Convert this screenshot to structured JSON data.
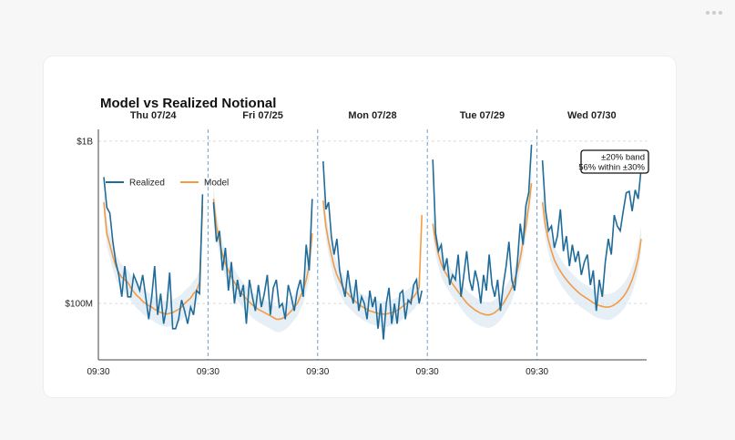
{
  "chart_data": {
    "type": "line",
    "title": "Model vs Realized Notional",
    "y_scale": "log",
    "ylim": [
      45000000,
      1150000000
    ],
    "y_ticks": [
      {
        "value": 1000000000,
        "label": "$1B"
      },
      {
        "value": 100000000,
        "label": "$100M"
      }
    ],
    "x_tick_label": "09:30",
    "days": [
      {
        "label": "Thu 07/24",
        "realized": [
          600000000,
          390000000,
          360000000,
          240000000,
          180000000,
          150000000,
          110000000,
          170000000,
          110000000,
          110000000,
          150000000,
          135000000,
          120000000,
          150000000,
          110000000,
          80000000,
          110000000,
          170000000,
          85000000,
          115000000,
          75000000,
          95000000,
          155000000,
          70000000,
          70000000,
          80000000,
          105000000,
          90000000,
          75000000,
          95000000,
          85000000,
          120000000,
          115000000,
          470000000
        ],
        "model": [
          420000000,
          270000000,
          230000000,
          195000000,
          170000000,
          155000000,
          145000000,
          140000000,
          135000000,
          125000000,
          118000000,
          112000000,
          108000000,
          103000000,
          100000000,
          97000000,
          95000000,
          92000000,
          90000000,
          88000000,
          87000000,
          86000000,
          87000000,
          88000000,
          90000000,
          92000000,
          95000000,
          100000000,
          104000000,
          108000000,
          115000000,
          120000000,
          135000000,
          400000000
        ]
      },
      {
        "label": "Fri 07/25",
        "realized": [
          420000000,
          240000000,
          280000000,
          160000000,
          220000000,
          120000000,
          180000000,
          100000000,
          140000000,
          110000000,
          130000000,
          75000000,
          140000000,
          110000000,
          90000000,
          130000000,
          95000000,
          115000000,
          150000000,
          85000000,
          125000000,
          140000000,
          95000000,
          100000000,
          80000000,
          130000000,
          110000000,
          90000000,
          120000000,
          140000000,
          110000000,
          230000000,
          160000000,
          440000000
        ],
        "model": [
          440000000,
          300000000,
          240000000,
          200000000,
          175000000,
          160000000,
          145000000,
          135000000,
          125000000,
          118000000,
          112000000,
          107000000,
          102000000,
          98000000,
          95000000,
          92000000,
          90000000,
          88000000,
          86000000,
          84000000,
          82000000,
          80000000,
          80000000,
          81000000,
          83000000,
          86000000,
          90000000,
          95000000,
          100000000,
          110000000,
          120000000,
          140000000,
          170000000,
          270000000
        ]
      },
      {
        "label": "Mon 07/28",
        "realized": [
          750000000,
          380000000,
          420000000,
          260000000,
          200000000,
          250000000,
          160000000,
          130000000,
          110000000,
          160000000,
          120000000,
          100000000,
          140000000,
          90000000,
          110000000,
          100000000,
          80000000,
          120000000,
          95000000,
          110000000,
          70000000,
          100000000,
          60000000,
          100000000,
          125000000,
          75000000,
          100000000,
          75000000,
          115000000,
          120000000,
          80000000,
          105000000,
          100000000,
          130000000,
          140000000,
          100000000,
          120000000
        ],
        "model": [
          430000000,
          300000000,
          240000000,
          200000000,
          170000000,
          150000000,
          138000000,
          128000000,
          120000000,
          115000000,
          110000000,
          106000000,
          102000000,
          99000000,
          96000000,
          94000000,
          92000000,
          90000000,
          89000000,
          88000000,
          87000000,
          86000000,
          86000000,
          86000000,
          87000000,
          88000000,
          89000000,
          91000000,
          93000000,
          96000000,
          99000000,
          102000000,
          106000000,
          110000000,
          116000000,
          125000000,
          350000000
        ]
      },
      {
        "label": "Tue 07/29",
        "realized": [
          770000000,
          270000000,
          210000000,
          230000000,
          160000000,
          190000000,
          130000000,
          150000000,
          140000000,
          200000000,
          110000000,
          150000000,
          210000000,
          140000000,
          120000000,
          160000000,
          135000000,
          100000000,
          150000000,
          120000000,
          200000000,
          130000000,
          110000000,
          140000000,
          90000000,
          130000000,
          170000000,
          240000000,
          140000000,
          120000000,
          180000000,
          310000000,
          230000000,
          400000000,
          480000000,
          950000000
        ],
        "model": [
          310000000,
          240000000,
          200000000,
          175000000,
          160000000,
          150000000,
          140000000,
          132000000,
          125000000,
          118000000,
          112000000,
          106000000,
          101000000,
          97000000,
          94000000,
          91000000,
          89000000,
          87000000,
          86000000,
          85000000,
          85000000,
          86000000,
          88000000,
          91000000,
          95000000,
          100000000,
          107000000,
          115000000,
          125000000,
          140000000,
          160000000,
          190000000,
          240000000,
          300000000,
          400000000,
          550000000
        ]
      },
      {
        "label": "Wed 07/30",
        "realized": [
          760000000,
          380000000,
          280000000,
          300000000,
          220000000,
          260000000,
          380000000,
          210000000,
          260000000,
          170000000,
          230000000,
          180000000,
          210000000,
          150000000,
          180000000,
          200000000,
          130000000,
          160000000,
          90000000,
          140000000,
          110000000,
          180000000,
          250000000,
          200000000,
          350000000,
          300000000,
          280000000,
          370000000,
          480000000,
          490000000,
          370000000,
          500000000,
          440000000,
          680000000
        ],
        "model": [
          420000000,
          300000000,
          245000000,
          210000000,
          185000000,
          170000000,
          158000000,
          148000000,
          140000000,
          133000000,
          127000000,
          122000000,
          117000000,
          113000000,
          110000000,
          107000000,
          104000000,
          101000000,
          99000000,
          97000000,
          96000000,
          95000000,
          95000000,
          96000000,
          98000000,
          101000000,
          105000000,
          110000000,
          117000000,
          127000000,
          140000000,
          160000000,
          190000000,
          250000000
        ]
      }
    ],
    "series": [
      {
        "name": "Realized",
        "color": "#1f6b99"
      },
      {
        "name": "Model",
        "color": "#f39b44"
      }
    ],
    "legend_position": "upper-left",
    "band_color": "#dce8f1",
    "divider_color": "#6fa0cc",
    "annotation": {
      "line1": "±20% band",
      "line2": "56% within ±30%"
    },
    "grid": "horizontal-dashed"
  }
}
